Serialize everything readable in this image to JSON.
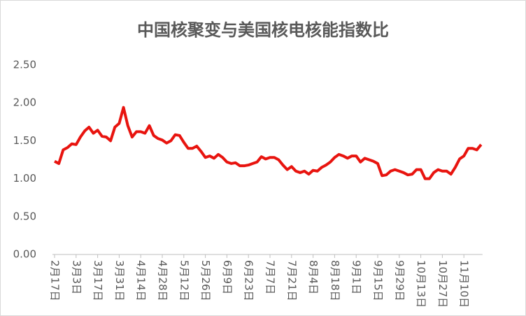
{
  "chart_data": {
    "type": "line",
    "title": "中国核聚变与美国核电核能指数比",
    "categories": [
      "2月17日",
      null,
      null,
      null,
      null,
      "3月3日",
      null,
      null,
      null,
      null,
      "3月17日",
      null,
      null,
      null,
      null,
      "3月31日",
      null,
      null,
      null,
      null,
      "4月14日",
      null,
      null,
      null,
      null,
      "4月28日",
      null,
      null,
      null,
      null,
      "5月12日",
      null,
      null,
      null,
      null,
      "5月26日",
      null,
      null,
      null,
      null,
      "6月9日",
      null,
      null,
      null,
      null,
      "6月23日",
      null,
      null,
      null,
      null,
      "7月7日",
      null,
      null,
      null,
      null,
      "7月21日",
      null,
      null,
      null,
      null,
      "8月4日",
      null,
      null,
      null,
      null,
      "8月18日",
      null,
      null,
      null,
      null,
      "9月1日",
      null,
      null,
      null,
      null,
      "9月15日",
      null,
      null,
      null,
      null,
      "9月29日",
      null,
      null,
      null,
      null,
      "10月13日",
      null,
      null,
      null,
      null,
      "10月27日",
      null,
      null,
      null,
      null,
      "11月10日",
      null,
      null,
      null,
      null
    ],
    "values": [
      1.23,
      1.2,
      1.38,
      1.41,
      1.46,
      1.45,
      1.55,
      1.63,
      1.68,
      1.6,
      1.64,
      1.56,
      1.55,
      1.5,
      1.68,
      1.73,
      1.94,
      1.7,
      1.55,
      1.62,
      1.62,
      1.6,
      1.7,
      1.57,
      1.53,
      1.51,
      1.47,
      1.5,
      1.58,
      1.57,
      1.48,
      1.4,
      1.4,
      1.43,
      1.36,
      1.28,
      1.3,
      1.27,
      1.32,
      1.28,
      1.22,
      1.2,
      1.21,
      1.17,
      1.17,
      1.18,
      1.2,
      1.22,
      1.29,
      1.26,
      1.28,
      1.28,
      1.25,
      1.18,
      1.12,
      1.16,
      1.1,
      1.08,
      1.1,
      1.06,
      1.11,
      1.1,
      1.15,
      1.18,
      1.22,
      1.28,
      1.32,
      1.3,
      1.27,
      1.3,
      1.3,
      1.22,
      1.27,
      1.25,
      1.23,
      1.2,
      1.04,
      1.05,
      1.1,
      1.12,
      1.1,
      1.08,
      1.05,
      1.06,
      1.12,
      1.12,
      1.0,
      1.0,
      1.08,
      1.12,
      1.1,
      1.1,
      1.06,
      1.15,
      1.26,
      1.3,
      1.4,
      1.4,
      1.38,
      1.45
    ],
    "color": "#e8140f",
    "ylim": [
      0,
      2.5
    ],
    "yticks": [
      {
        "value": 0,
        "label": "0.00"
      },
      {
        "value": 0.5,
        "label": "0.50"
      },
      {
        "value": 1,
        "label": "1.00"
      },
      {
        "value": 1.5,
        "label": "1.50"
      },
      {
        "value": 2,
        "label": "2.00"
      },
      {
        "value": 2.5,
        "label": "2.50"
      }
    ]
  }
}
